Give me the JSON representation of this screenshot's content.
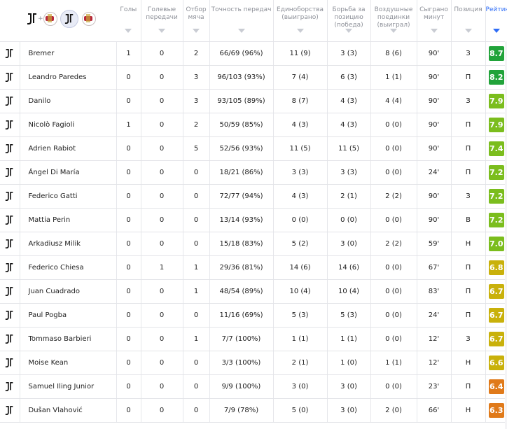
{
  "header": {
    "columns": [
      {
        "key": "goals",
        "label": "Голы"
      },
      {
        "key": "assists",
        "label": "Голевые передачи"
      },
      {
        "key": "tackles",
        "label": "Отбор мяча"
      },
      {
        "key": "pass_acc",
        "label": "Точность передач"
      },
      {
        "key": "duels",
        "label": "Единоборства (выиграно)"
      },
      {
        "key": "pos",
        "label": "Борьба за позицию (победа)"
      },
      {
        "key": "aerial",
        "label": "Воздушные поединки (выиграл)"
      },
      {
        "key": "minutes",
        "label": "Сыграно минут"
      },
      {
        "key": "position",
        "label": "Позиция"
      },
      {
        "key": "rating",
        "label": "Рейтинг"
      }
    ],
    "teams": {
      "combined_plus": "+"
    }
  },
  "colors": {
    "accent": "#2f6df6",
    "rating_green": "#21a33a",
    "rating_lime": "#7bbd1d",
    "rating_yellow": "#c9b10b",
    "rating_orange": "#e07a1a"
  },
  "players": [
    {
      "name": "Bremer",
      "goals": "1",
      "assists": "0",
      "tackles": "2",
      "pass_acc": "66/69 (96%)",
      "duels": "11 (9)",
      "pos": "3 (3)",
      "aerial": "8 (6)",
      "minutes": "90'",
      "position": "З",
      "rating": "8.7",
      "rating_color": "#21a33a"
    },
    {
      "name": "Leandro Paredes",
      "goals": "0",
      "assists": "0",
      "tackles": "3",
      "pass_acc": "96/103 (93%)",
      "duels": "7 (4)",
      "pos": "6 (3)",
      "aerial": "1 (1)",
      "minutes": "90'",
      "position": "П",
      "rating": "8.2",
      "rating_color": "#21a33a"
    },
    {
      "name": "Danilo",
      "goals": "0",
      "assists": "0",
      "tackles": "3",
      "pass_acc": "93/105 (89%)",
      "duels": "8 (7)",
      "pos": "4 (3)",
      "aerial": "4 (4)",
      "minutes": "90'",
      "position": "З",
      "rating": "7.9",
      "rating_color": "#7bbd1d"
    },
    {
      "name": "Nicolò Fagioli",
      "goals": "1",
      "assists": "0",
      "tackles": "2",
      "pass_acc": "50/59 (85%)",
      "duels": "4 (3)",
      "pos": "4 (3)",
      "aerial": "0 (0)",
      "minutes": "90'",
      "position": "П",
      "rating": "7.9",
      "rating_color": "#7bbd1d"
    },
    {
      "name": "Adrien Rabiot",
      "goals": "0",
      "assists": "0",
      "tackles": "5",
      "pass_acc": "52/56 (93%)",
      "duels": "11 (5)",
      "pos": "11 (5)",
      "aerial": "0 (0)",
      "minutes": "90'",
      "position": "П",
      "rating": "7.4",
      "rating_color": "#7bbd1d"
    },
    {
      "name": "Ángel Di María",
      "goals": "0",
      "assists": "0",
      "tackles": "0",
      "pass_acc": "18/21 (86%)",
      "duels": "3 (3)",
      "pos": "3 (3)",
      "aerial": "0 (0)",
      "minutes": "24'",
      "position": "П",
      "rating": "7.2",
      "rating_color": "#7bbd1d"
    },
    {
      "name": "Federico Gatti",
      "goals": "0",
      "assists": "0",
      "tackles": "0",
      "pass_acc": "72/77 (94%)",
      "duels": "4 (3)",
      "pos": "2 (1)",
      "aerial": "2 (2)",
      "minutes": "90'",
      "position": "З",
      "rating": "7.2",
      "rating_color": "#7bbd1d"
    },
    {
      "name": "Mattia Perin",
      "goals": "0",
      "assists": "0",
      "tackles": "0",
      "pass_acc": "13/14 (93%)",
      "duels": "0 (0)",
      "pos": "0 (0)",
      "aerial": "0 (0)",
      "minutes": "90'",
      "position": "В",
      "rating": "7.2",
      "rating_color": "#7bbd1d"
    },
    {
      "name": "Arkadiusz Milik",
      "goals": "0",
      "assists": "0",
      "tackles": "0",
      "pass_acc": "15/18 (83%)",
      "duels": "5 (2)",
      "pos": "3 (0)",
      "aerial": "2 (2)",
      "minutes": "59'",
      "position": "Н",
      "rating": "7.0",
      "rating_color": "#7bbd1d"
    },
    {
      "name": "Federico Chiesa",
      "goals": "0",
      "assists": "1",
      "tackles": "1",
      "pass_acc": "29/36 (81%)",
      "duels": "14 (6)",
      "pos": "14 (6)",
      "aerial": "0 (0)",
      "minutes": "67'",
      "position": "П",
      "rating": "6.8",
      "rating_color": "#c9b10b"
    },
    {
      "name": "Juan Cuadrado",
      "goals": "0",
      "assists": "0",
      "tackles": "1",
      "pass_acc": "48/54 (89%)",
      "duels": "10 (4)",
      "pos": "10 (4)",
      "aerial": "0 (0)",
      "minutes": "83'",
      "position": "П",
      "rating": "6.7",
      "rating_color": "#c9b10b"
    },
    {
      "name": "Paul Pogba",
      "goals": "0",
      "assists": "0",
      "tackles": "0",
      "pass_acc": "11/16 (69%)",
      "duels": "5 (3)",
      "pos": "5 (3)",
      "aerial": "0 (0)",
      "minutes": "24'",
      "position": "П",
      "rating": "6.7",
      "rating_color": "#c9b10b"
    },
    {
      "name": "Tommaso Barbieri",
      "goals": "0",
      "assists": "0",
      "tackles": "1",
      "pass_acc": "7/7 (100%)",
      "duels": "1 (1)",
      "pos": "1 (1)",
      "aerial": "0 (0)",
      "minutes": "12'",
      "position": "З",
      "rating": "6.7",
      "rating_color": "#c9b10b"
    },
    {
      "name": "Moise Kean",
      "goals": "0",
      "assists": "0",
      "tackles": "0",
      "pass_acc": "3/3 (100%)",
      "duels": "2 (1)",
      "pos": "1 (0)",
      "aerial": "1 (1)",
      "minutes": "12'",
      "position": "Н",
      "rating": "6.6",
      "rating_color": "#c9b10b"
    },
    {
      "name": "Samuel Iling Junior",
      "goals": "0",
      "assists": "0",
      "tackles": "0",
      "pass_acc": "9/9 (100%)",
      "duels": "3 (0)",
      "pos": "3 (0)",
      "aerial": "0 (0)",
      "minutes": "23'",
      "position": "П",
      "rating": "6.4",
      "rating_color": "#e07a1a"
    },
    {
      "name": "Dušan Vlahović",
      "goals": "0",
      "assists": "0",
      "tackles": "0",
      "pass_acc": "7/9 (78%)",
      "duels": "5 (0)",
      "pos": "3 (0)",
      "aerial": "2 (0)",
      "minutes": "66'",
      "position": "Н",
      "rating": "6.3",
      "rating_color": "#e07a1a"
    }
  ]
}
